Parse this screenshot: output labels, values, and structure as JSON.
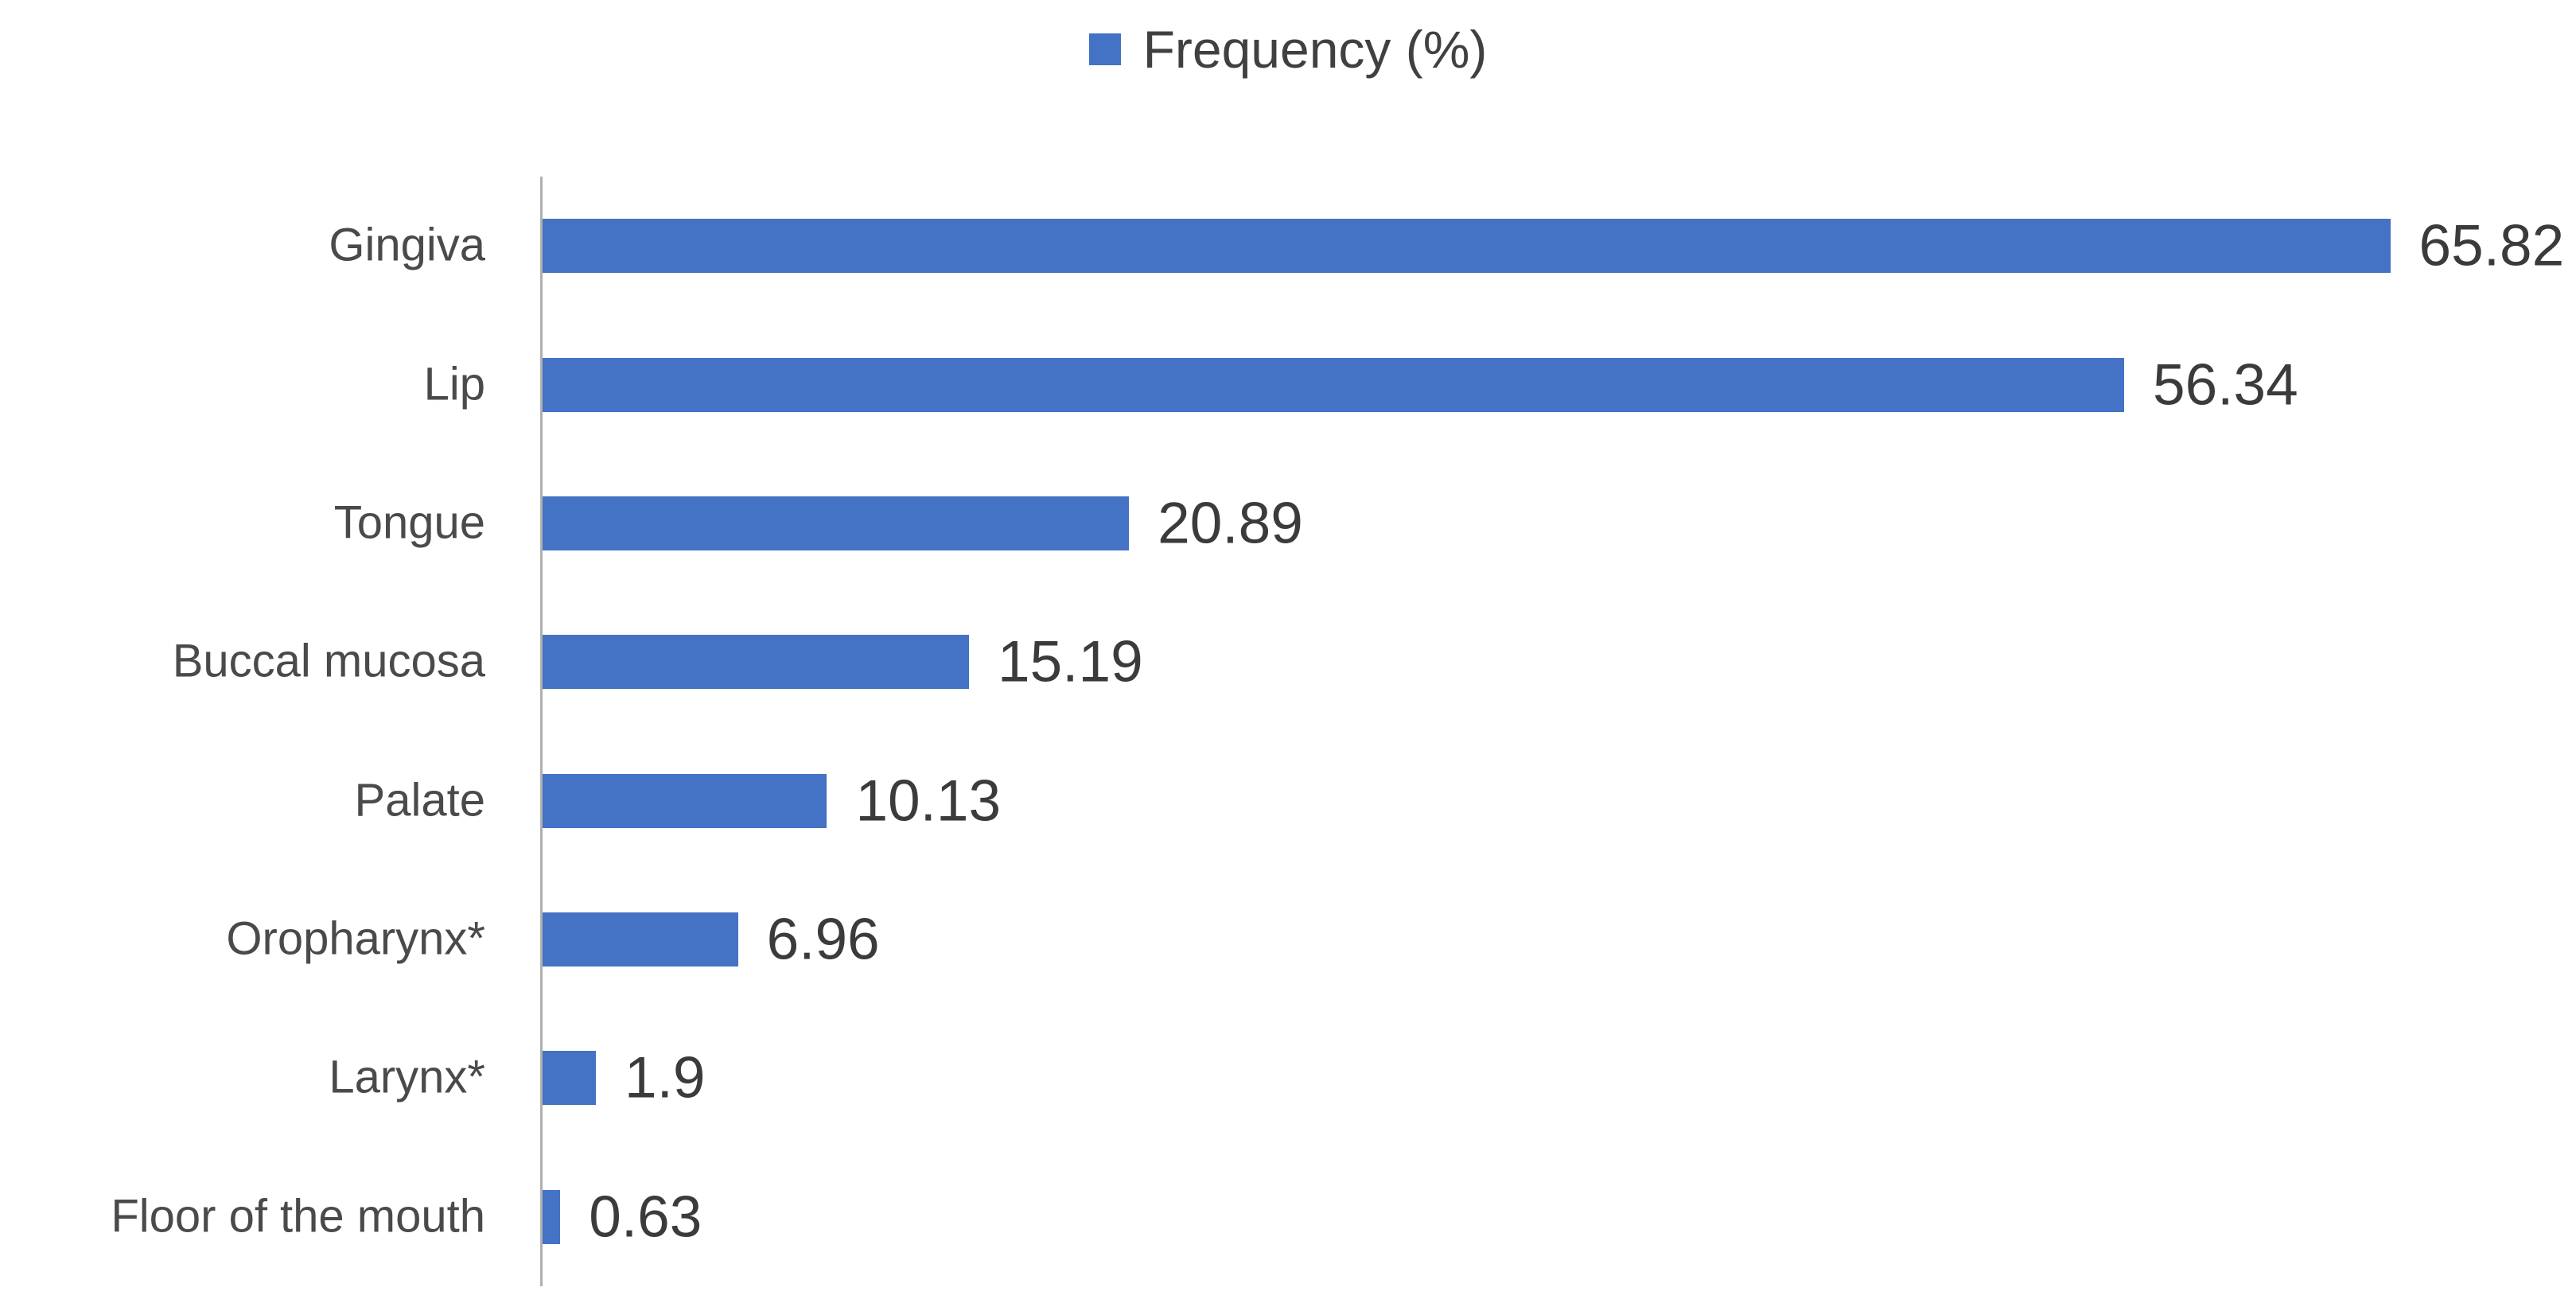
{
  "legend": {
    "label": "Frequency (%)",
    "marker_color": "#4472C4"
  },
  "chart_data": {
    "type": "bar",
    "orientation": "horizontal",
    "title": "",
    "xlabel": "",
    "ylabel": "",
    "series_name": "Frequency (%)",
    "categories": [
      "Gingiva",
      "Lip",
      "Tongue",
      "Buccal mucosa",
      "Palate",
      "Oropharynx*",
      "Larynx*",
      "Floor of the mouth"
    ],
    "values": [
      65.82,
      56.34,
      20.89,
      15.19,
      10.13,
      6.96,
      1.9,
      0.63
    ],
    "value_labels": [
      "65.82",
      "56.34",
      "20.89",
      "15.19",
      "10.13",
      "6.96",
      "1.9",
      "0.63"
    ],
    "xlim": [
      0,
      70
    ],
    "grid": false,
    "legend_position": "top-center",
    "bar_color": "#4472C4",
    "axis_color": "#b0b0b0",
    "category_label_color": "#4a4a4a",
    "value_label_color": "#3b3b3b"
  }
}
